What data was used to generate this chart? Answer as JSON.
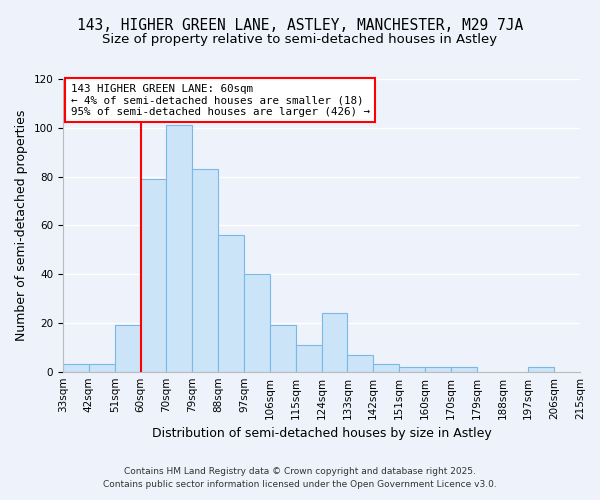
{
  "title_line1": "143, HIGHER GREEN LANE, ASTLEY, MANCHESTER, M29 7JA",
  "title_line2": "Size of property relative to semi-detached houses in Astley",
  "xlabel": "Distribution of semi-detached houses by size in Astley",
  "ylabel": "Number of semi-detached properties",
  "bin_labels": [
    "33sqm",
    "42sqm",
    "51sqm",
    "60sqm",
    "70sqm",
    "79sqm",
    "88sqm",
    "97sqm",
    "106sqm",
    "115sqm",
    "124sqm",
    "133sqm",
    "142sqm",
    "151sqm",
    "160sqm",
    "170sqm",
    "179sqm",
    "188sqm",
    "197sqm",
    "206sqm",
    "215sqm"
  ],
  "bar_heights": [
    3,
    3,
    19,
    79,
    101,
    83,
    56,
    40,
    19,
    11,
    24,
    7,
    3,
    2,
    2,
    2,
    0,
    0,
    2,
    0
  ],
  "bar_color": "#cce4f7",
  "bar_edgecolor": "#7ab8e8",
  "red_line_bin_index": 3,
  "red_line_label_title": "143 HIGHER GREEN LANE: 60sqm",
  "red_line_label_line2": "← 4% of semi-detached houses are smaller (18)",
  "red_line_label_line3": "95% of semi-detached houses are larger (426) →",
  "ylim": [
    0,
    120
  ],
  "yticks": [
    0,
    20,
    40,
    60,
    80,
    100,
    120
  ],
  "background_color": "#eef2fa",
  "plot_bg_color": "#eef2fa",
  "footnote1": "Contains HM Land Registry data © Crown copyright and database right 2025.",
  "footnote2": "Contains public sector information licensed under the Open Government Licence v3.0.",
  "grid_color": "#ffffff",
  "title_fontsize": 10.5,
  "subtitle_fontsize": 9.5,
  "axis_label_fontsize": 9,
  "tick_fontsize": 7.5,
  "footnote_fontsize": 6.5
}
